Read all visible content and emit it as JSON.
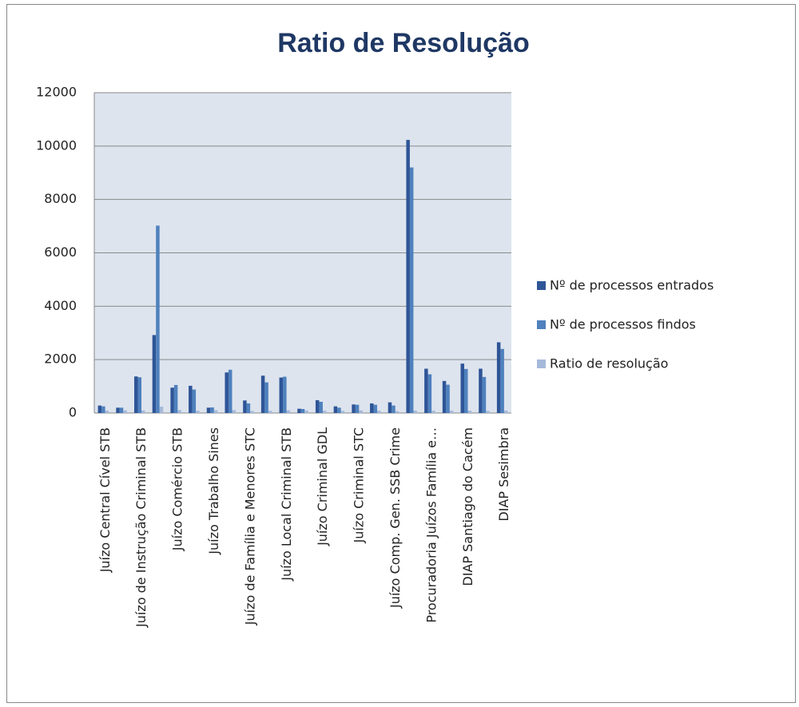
{
  "chart_data": {
    "type": "bar",
    "title": "Ratio de Resolução",
    "categories": [
      "Juízo Central Cível STB",
      null,
      "Juízo de Instrução Criminal STB",
      null,
      "Juízo Comércio STB",
      null,
      "Juízo Trabalho Sines",
      null,
      "Juízo de Família e Menores STC",
      null,
      "Juízo Local Criminal STB",
      null,
      "Juízo Criminal GDL",
      null,
      "Juízo Criminal STC",
      null,
      "Juízo Comp. Gen. SSB Crime",
      null,
      "Procuradoria Juízos Família e…",
      null,
      "DIAP Santiago do Cacém",
      null,
      "DIAP Sesimbra"
    ],
    "series": [
      {
        "name": "Nº de processos entrados",
        "color": "#2f5597",
        "values": [
          280,
          200,
          1370,
          2920,
          950,
          1020,
          200,
          1520,
          470,
          1400,
          1330,
          160,
          480,
          250,
          320,
          360,
          400,
          10230,
          1660,
          1200,
          1850,
          1660,
          2650
        ]
      },
      {
        "name": "Nº de processos findos",
        "color": "#4f81bd",
        "values": [
          250,
          200,
          1340,
          7020,
          1050,
          880,
          210,
          1620,
          360,
          1150,
          1360,
          150,
          420,
          200,
          310,
          310,
          280,
          9200,
          1450,
          1060,
          1650,
          1350,
          2400
        ]
      },
      {
        "name": "Ratio de resolução",
        "color": "#a6b9db",
        "values": [
          89,
          100,
          98,
          240,
          111,
          86,
          105,
          107,
          77,
          82,
          102,
          94,
          88,
          80,
          97,
          86,
          70,
          90,
          87,
          88,
          89,
          81,
          91
        ]
      }
    ],
    "ylim": [
      0,
      12000
    ],
    "yticks": [
      0,
      2000,
      4000,
      6000,
      8000,
      10000,
      12000
    ],
    "grid": true,
    "legend": "right"
  }
}
